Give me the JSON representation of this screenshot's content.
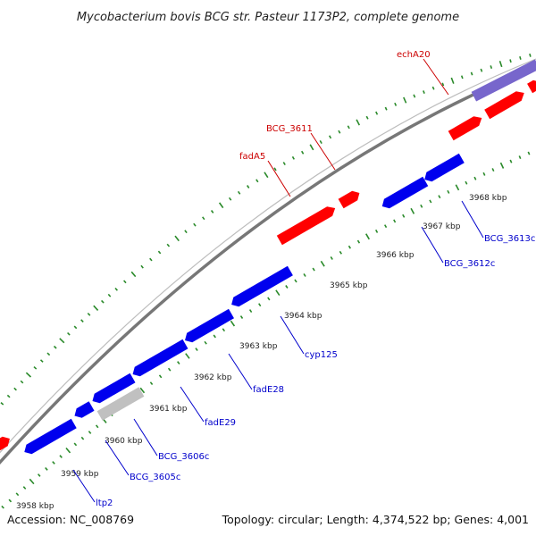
{
  "title": "Mycobacterium bovis BCG str. Pasteur 1173P2, complete genome",
  "accession_text": "Accession: NC_008769",
  "summary_text": "Topology: circular; Length: 4,374,522 bp; Genes: 4,001",
  "colors": {
    "forward": "#ff0000",
    "reverse": "#0000ee",
    "pseudo": "#c0c0c0",
    "rna": "#7766cc",
    "backbone": "#777777",
    "dots": "#2a8a2a",
    "forward_label": "#cc0000",
    "reverse_label": "#0000cc"
  },
  "ticks": [
    "3958 kbp",
    "3959 kbp",
    "3960 kbp",
    "3961 kbp",
    "3962 kbp",
    "3963 kbp",
    "3964 kbp",
    "3965 kbp",
    "3966 kbp",
    "3967 kbp",
    "3968 kbp"
  ],
  "gene_labels": [
    {
      "name": "echA20",
      "strand": "forward"
    },
    {
      "name": "BCG_3611",
      "strand": "forward"
    },
    {
      "name": "fadA5",
      "strand": "forward"
    },
    {
      "name": "BCG_3613c",
      "strand": "reverse"
    },
    {
      "name": "BCG_3612c",
      "strand": "reverse"
    },
    {
      "name": "cyp125",
      "strand": "reverse"
    },
    {
      "name": "fadE28",
      "strand": "reverse"
    },
    {
      "name": "fadE29",
      "strand": "reverse"
    },
    {
      "name": "BCG_3606c",
      "strand": "reverse"
    },
    {
      "name": "BCG_3605c",
      "strand": "reverse"
    },
    {
      "name": "ltp2",
      "strand": "reverse"
    }
  ]
}
